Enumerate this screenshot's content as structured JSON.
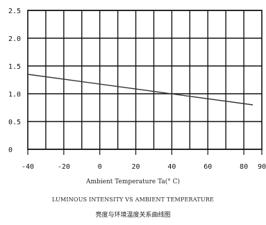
{
  "chart_data": {
    "type": "line",
    "x": [
      -40,
      85
    ],
    "series": [
      {
        "values": [
          1.35,
          0.8
        ],
        "color": "#333333"
      }
    ],
    "xlabel": "Ambient Temperature Ta(° C)",
    "ylabel": "",
    "xlim": [
      -40,
      90
    ],
    "ylim": [
      0,
      2.5
    ],
    "xticks": [
      -40,
      -20,
      0,
      20,
      40,
      60,
      80,
      90
    ],
    "yticks": [
      0,
      0.5,
      1.0,
      1.5,
      2.0,
      2.5
    ],
    "xtick_labels": [
      "-40",
      "-20",
      "0",
      "20",
      "40",
      "60",
      "80",
      "90"
    ],
    "ytick_labels": [
      "0",
      "0.5",
      "1.0",
      "1.5",
      "2.0",
      "2.5"
    ],
    "grid": true,
    "caption_en": "LUMINOUS INTENSITY VS AMBIENT TEMPERATURE",
    "caption_zh": "亮度与环境温度关系曲线图"
  }
}
